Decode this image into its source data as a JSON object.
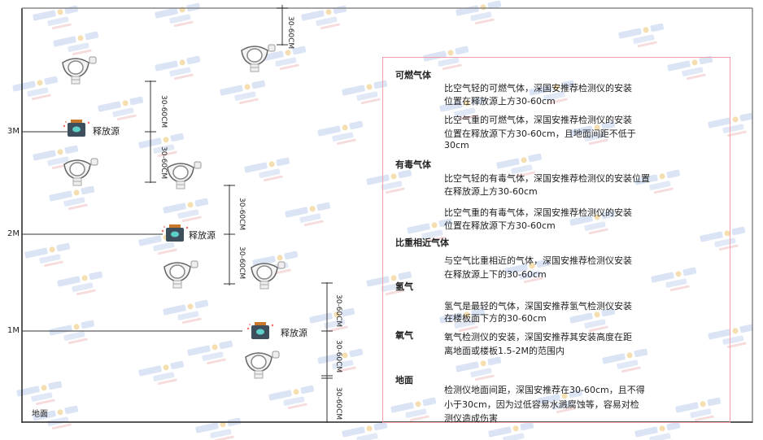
{
  "watermark": {
    "brand": "SINGOAN",
    "cn": "深国安"
  },
  "levels": [
    "3M",
    "2M",
    "1M"
  ],
  "ground_label": "地面",
  "source_label": "释放源",
  "dimension_label": "30-60CM",
  "colors": {
    "panel_border": "#f2a0a6",
    "source_body": "#3d4e5c",
    "source_cap": "#c9772b",
    "source_face": "#5fd0c8"
  },
  "panel": {
    "sections": [
      {
        "heading": "可燃气体",
        "paragraphs": [
          [
            "比空气轻的可燃气体，深国安推荐检测仪的安装",
            "位置在释放源上方30-60cm"
          ],
          [
            "比空气重的可燃气体，深国安推荐检测仪的安装",
            "位置在释放源下方30-60cm，且地面间距不低于",
            "30cm"
          ]
        ]
      },
      {
        "heading": "有毒气体",
        "paragraphs": [
          [
            "比空气轻的有毒气体，深国安推荐检测仪的安装位置",
            "在释放源上方30-60cm"
          ],
          [
            "比空气重的有毒气体，深国安推荐检测仪的安装",
            "位置在释放源下方30-60cm"
          ]
        ]
      },
      {
        "heading": "比重相近气体",
        "paragraphs": [
          [
            "与空气比重相近的气体，深国安推荐检测仪安装",
            "在释放源上下的30-60cm"
          ]
        ]
      },
      {
        "heading": "氢气",
        "paragraphs": [
          [
            "氢气是最轻的气体，深国安推荐氢气检测仪安装",
            "在楼板面下方的30-60cm"
          ]
        ]
      },
      {
        "heading": "氧气",
        "paragraphs": [
          [
            "氧气检测仪的安装，深国安推荐其安装高度在距",
            "离地面或楼板1.5-2M的范围内"
          ]
        ]
      },
      {
        "heading": "地面",
        "paragraphs": [
          [
            "检测仪地面间距，深国安推荐在30-60cm，且不得",
            "小于30cm，因为过低容易水溅腐蚀等，容易对检",
            "测仪造成伤害"
          ]
        ]
      }
    ]
  }
}
